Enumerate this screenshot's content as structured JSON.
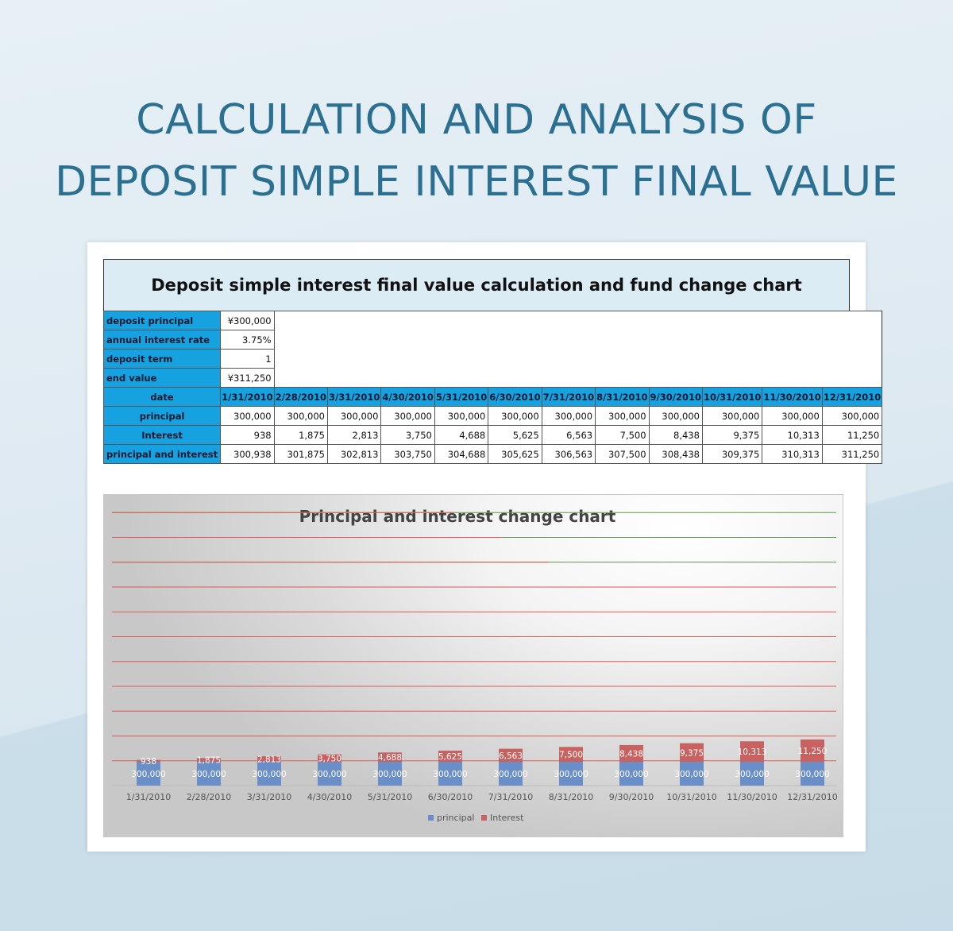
{
  "headline": {
    "line1": "CALCULATION AND ANALYSIS OF",
    "line2": "DEPOSIT SIMPLE INTEREST FINAL VALUE"
  },
  "sheet": {
    "title": "Deposit simple interest final value calculation and fund change chart",
    "params": [
      {
        "label": "deposit principal",
        "value": "¥300,000"
      },
      {
        "label": "annual interest rate",
        "value": "3.75%"
      },
      {
        "label": "deposit term",
        "value": "1"
      },
      {
        "label": "end value",
        "value": "¥311,250"
      }
    ],
    "row_labels": {
      "date": "date",
      "principal": "principal",
      "interest": "Interest",
      "total": "principal and interest"
    },
    "dates": [
      "1/31/2010",
      "2/28/2010",
      "3/31/2010",
      "4/30/2010",
      "5/31/2010",
      "6/30/2010",
      "7/31/2010",
      "8/31/2010",
      "9/30/2010",
      "10/31/2010",
      "11/30/2010",
      "12/31/2010"
    ],
    "principal": [
      "300,000",
      "300,000",
      "300,000",
      "300,000",
      "300,000",
      "300,000",
      "300,000",
      "300,000",
      "300,000",
      "300,000",
      "300,000",
      "300,000"
    ],
    "interest": [
      "938",
      "1,875",
      "2,813",
      "3,750",
      "4,688",
      "5,625",
      "6,563",
      "7,500",
      "8,438",
      "9,375",
      "10,313",
      "11,250"
    ],
    "total": [
      "300,938",
      "301,875",
      "302,813",
      "303,750",
      "304,688",
      "305,625",
      "306,563",
      "307,500",
      "308,438",
      "309,375",
      "310,313",
      "311,250"
    ]
  },
  "chart_data": {
    "type": "bar",
    "stacked": true,
    "title": "Principal and interest change chart",
    "categories": [
      "1/31/2010",
      "2/28/2010",
      "3/31/2010",
      "4/30/2010",
      "5/31/2010",
      "6/30/2010",
      "7/31/2010",
      "8/31/2010",
      "9/30/2010",
      "10/31/2010",
      "11/30/2010",
      "12/31/2010"
    ],
    "series": [
      {
        "name": "principal",
        "color": "#6a8fc8",
        "values": [
          300000,
          300000,
          300000,
          300000,
          300000,
          300000,
          300000,
          300000,
          300000,
          300000,
          300000,
          300000
        ],
        "labels": [
          "300,000",
          "300,000",
          "300,000",
          "300,000",
          "300,000",
          "300,000",
          "300,000",
          "300,000",
          "300,000",
          "300,000",
          "300,000",
          "300,000"
        ]
      },
      {
        "name": "Interest",
        "color": "#c86260",
        "values": [
          938,
          1875,
          2813,
          3750,
          4688,
          5625,
          6563,
          7500,
          8438,
          9375,
          10313,
          11250
        ],
        "labels": [
          "938",
          "1,875",
          "2,813",
          "3,750",
          "4,688",
          "5,625",
          "6,563",
          "7,500",
          "8,438",
          "9,375",
          "10,313",
          "11,250"
        ]
      }
    ],
    "y_axis_visible": false,
    "grid": true,
    "legend_position": "bottom"
  }
}
